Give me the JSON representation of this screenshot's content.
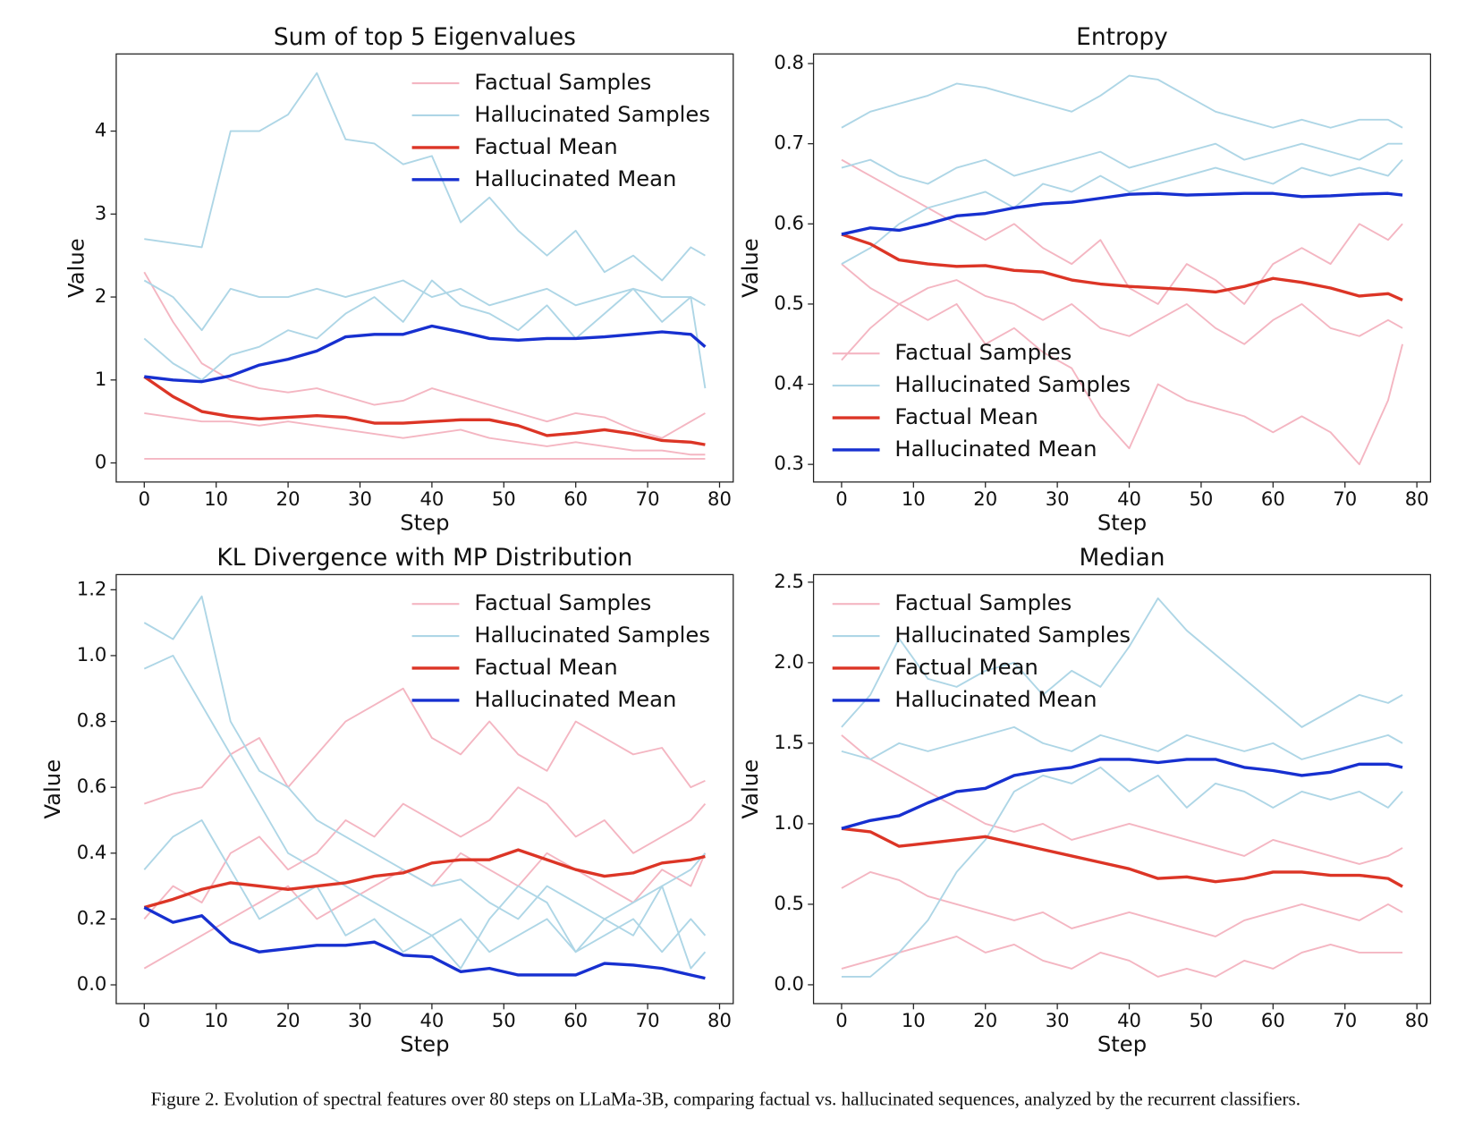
{
  "caption": "Figure 2.  Evolution of spectral features over 80 steps on LLaMa-3B, comparing factual vs. hallucinated sequences, analyzed by the recurrent classifiers.",
  "chart_data": [
    {
      "type": "line",
      "title": "Sum of top 5 Eigenvalues",
      "xlabel": "Step",
      "ylabel": "Value",
      "legend": "upper right",
      "x": [
        0,
        4,
        8,
        12,
        16,
        20,
        24,
        28,
        32,
        36,
        40,
        44,
        48,
        52,
        56,
        60,
        64,
        68,
        72,
        76,
        78
      ],
      "xlim": [
        -3.9,
        81.9
      ],
      "xticks": [
        0,
        10,
        20,
        30,
        40,
        50,
        60,
        70,
        80
      ],
      "ylim": [
        -0.23,
        4.93
      ],
      "yticks": [
        0,
        1,
        2,
        3,
        4
      ],
      "series": [
        {
          "name": "Factual Samples",
          "color": "#f4b6c2",
          "lines": [
            [
              2.3,
              1.7,
              1.2,
              1.0,
              0.9,
              0.85,
              0.9,
              0.8,
              0.7,
              0.75,
              0.9,
              0.8,
              0.7,
              0.6,
              0.5,
              0.6,
              0.55,
              0.4,
              0.3,
              0.5,
              0.6
            ],
            [
              0.6,
              0.55,
              0.5,
              0.5,
              0.45,
              0.5,
              0.45,
              0.4,
              0.35,
              0.3,
              0.35,
              0.4,
              0.3,
              0.25,
              0.2,
              0.25,
              0.2,
              0.15,
              0.15,
              0.1,
              0.1
            ],
            [
              0.05,
              0.05,
              0.05,
              0.05,
              0.05,
              0.05,
              0.05,
              0.05,
              0.05,
              0.05,
              0.05,
              0.05,
              0.05,
              0.05,
              0.05,
              0.05,
              0.05,
              0.05,
              0.05,
              0.05,
              0.05
            ]
          ]
        },
        {
          "name": "Hallucinated Samples",
          "color": "#aed6e6",
          "lines": [
            [
              2.7,
              2.65,
              2.6,
              4.0,
              4.0,
              4.2,
              4.7,
              3.9,
              3.85,
              3.6,
              3.7,
              2.9,
              3.2,
              2.8,
              2.5,
              2.8,
              2.3,
              2.5,
              2.2,
              2.6,
              2.5
            ],
            [
              2.2,
              2.0,
              1.6,
              2.1,
              2.0,
              2.0,
              2.1,
              2.0,
              2.1,
              2.2,
              2.0,
              2.1,
              1.9,
              2.0,
              2.1,
              1.9,
              2.0,
              2.1,
              2.0,
              2.0,
              1.9
            ],
            [
              1.5,
              1.2,
              1.0,
              1.3,
              1.4,
              1.6,
              1.5,
              1.8,
              2.0,
              1.7,
              2.2,
              1.9,
              1.8,
              1.6,
              1.9,
              1.5,
              1.8,
              2.1,
              1.7,
              2.0,
              0.9
            ]
          ]
        },
        {
          "name": "Factual Mean",
          "color": "#dc3526",
          "values": [
            1.04,
            0.8,
            0.62,
            0.56,
            0.53,
            0.55,
            0.57,
            0.55,
            0.48,
            0.48,
            0.5,
            0.52,
            0.52,
            0.45,
            0.33,
            0.36,
            0.4,
            0.35,
            0.27,
            0.25,
            0.22
          ]
        },
        {
          "name": "Hallucinated Mean",
          "color": "#1730d0",
          "values": [
            1.04,
            1.0,
            0.98,
            1.05,
            1.18,
            1.25,
            1.35,
            1.52,
            1.55,
            1.55,
            1.65,
            1.58,
            1.5,
            1.48,
            1.5,
            1.5,
            1.52,
            1.55,
            1.58,
            1.55,
            1.4
          ]
        }
      ]
    },
    {
      "type": "line",
      "title": "Entropy",
      "xlabel": "Step",
      "ylabel": "Value",
      "legend": "lower left",
      "x": [
        0,
        4,
        8,
        12,
        16,
        20,
        24,
        28,
        32,
        36,
        40,
        44,
        48,
        52,
        56,
        60,
        64,
        68,
        72,
        76,
        78
      ],
      "xlim": [
        -3.9,
        81.9
      ],
      "xticks": [
        0,
        10,
        20,
        30,
        40,
        50,
        60,
        70,
        80
      ],
      "ylim": [
        0.278,
        0.812
      ],
      "yticks": [
        0.3,
        0.4,
        0.5,
        0.6,
        0.7,
        0.8
      ],
      "series": [
        {
          "name": "Factual Samples",
          "color": "#f4b6c2",
          "lines": [
            [
              0.68,
              0.66,
              0.64,
              0.62,
              0.6,
              0.58,
              0.6,
              0.57,
              0.55,
              0.58,
              0.52,
              0.5,
              0.55,
              0.53,
              0.5,
              0.55,
              0.57,
              0.55,
              0.6,
              0.58,
              0.6
            ],
            [
              0.55,
              0.52,
              0.5,
              0.48,
              0.5,
              0.45,
              0.47,
              0.44,
              0.42,
              0.36,
              0.32,
              0.4,
              0.38,
              0.37,
              0.36,
              0.34,
              0.36,
              0.34,
              0.3,
              0.38,
              0.45
            ],
            [
              0.43,
              0.47,
              0.5,
              0.52,
              0.53,
              0.51,
              0.5,
              0.48,
              0.5,
              0.47,
              0.46,
              0.48,
              0.5,
              0.47,
              0.45,
              0.48,
              0.5,
              0.47,
              0.46,
              0.48,
              0.47
            ]
          ]
        },
        {
          "name": "Hallucinated Samples",
          "color": "#aed6e6",
          "lines": [
            [
              0.72,
              0.74,
              0.75,
              0.76,
              0.775,
              0.77,
              0.76,
              0.75,
              0.74,
              0.76,
              0.785,
              0.78,
              0.76,
              0.74,
              0.73,
              0.72,
              0.73,
              0.72,
              0.73,
              0.73,
              0.72
            ],
            [
              0.67,
              0.68,
              0.66,
              0.65,
              0.67,
              0.68,
              0.66,
              0.67,
              0.68,
              0.69,
              0.67,
              0.68,
              0.69,
              0.7,
              0.68,
              0.69,
              0.7,
              0.69,
              0.68,
              0.7,
              0.7
            ],
            [
              0.55,
              0.57,
              0.6,
              0.62,
              0.63,
              0.64,
              0.62,
              0.65,
              0.64,
              0.66,
              0.64,
              0.65,
              0.66,
              0.67,
              0.66,
              0.65,
              0.67,
              0.66,
              0.67,
              0.66,
              0.68
            ]
          ]
        },
        {
          "name": "Factual Mean",
          "color": "#dc3526",
          "values": [
            0.587,
            0.575,
            0.555,
            0.55,
            0.547,
            0.548,
            0.542,
            0.54,
            0.53,
            0.525,
            0.522,
            0.52,
            0.518,
            0.515,
            0.522,
            0.532,
            0.527,
            0.52,
            0.51,
            0.513,
            0.505
          ]
        },
        {
          "name": "Hallucinated Mean",
          "color": "#1730d0",
          "values": [
            0.587,
            0.595,
            0.592,
            0.6,
            0.61,
            0.613,
            0.62,
            0.625,
            0.627,
            0.632,
            0.637,
            0.638,
            0.636,
            0.637,
            0.638,
            0.638,
            0.634,
            0.635,
            0.637,
            0.638,
            0.636
          ]
        }
      ]
    },
    {
      "type": "line",
      "title": "KL Divergence with MP Distribution",
      "xlabel": "Step",
      "ylabel": "Value",
      "legend": "upper right",
      "x": [
        0,
        4,
        8,
        12,
        16,
        20,
        24,
        28,
        32,
        36,
        40,
        44,
        48,
        52,
        56,
        60,
        64,
        68,
        72,
        76,
        78
      ],
      "xlim": [
        -3.9,
        81.9
      ],
      "xticks": [
        0,
        10,
        20,
        30,
        40,
        50,
        60,
        70,
        80
      ],
      "ylim": [
        -0.057,
        1.246
      ],
      "yticks": [
        {
          "value": 0,
          "label": "0.0"
        },
        0.2,
        0.4,
        0.6,
        0.8,
        {
          "value": 1,
          "label": "1.0"
        },
        1.2
      ],
      "series": [
        {
          "name": "Factual Samples",
          "color": "#f4b6c2",
          "lines": [
            [
              0.55,
              0.58,
              0.6,
              0.7,
              0.75,
              0.6,
              0.7,
              0.8,
              0.85,
              0.9,
              0.75,
              0.7,
              0.8,
              0.7,
              0.65,
              0.8,
              0.75,
              0.7,
              0.72,
              0.6,
              0.62
            ],
            [
              0.2,
              0.3,
              0.25,
              0.4,
              0.45,
              0.35,
              0.4,
              0.5,
              0.45,
              0.55,
              0.5,
              0.45,
              0.5,
              0.6,
              0.55,
              0.45,
              0.5,
              0.4,
              0.45,
              0.5,
              0.55
            ],
            [
              0.05,
              0.1,
              0.15,
              0.2,
              0.25,
              0.3,
              0.2,
              0.25,
              0.3,
              0.35,
              0.3,
              0.4,
              0.35,
              0.3,
              0.4,
              0.35,
              0.3,
              0.25,
              0.35,
              0.3,
              0.4
            ]
          ]
        },
        {
          "name": "Hallucinated Samples",
          "color": "#aed6e6",
          "lines": [
            [
              1.1,
              1.05,
              1.18,
              0.8,
              0.65,
              0.6,
              0.5,
              0.45,
              0.4,
              0.35,
              0.3,
              0.32,
              0.25,
              0.2,
              0.3,
              0.25,
              0.2,
              0.25,
              0.3,
              0.35,
              0.4
            ],
            [
              0.96,
              1.0,
              0.85,
              0.7,
              0.55,
              0.4,
              0.35,
              0.3,
              0.25,
              0.2,
              0.15,
              0.2,
              0.1,
              0.15,
              0.2,
              0.1,
              0.15,
              0.2,
              0.1,
              0.2,
              0.15
            ],
            [
              0.35,
              0.45,
              0.5,
              0.35,
              0.2,
              0.25,
              0.3,
              0.15,
              0.2,
              0.1,
              0.15,
              0.05,
              0.2,
              0.3,
              0.25,
              0.1,
              0.2,
              0.15,
              0.3,
              0.05,
              0.1
            ]
          ]
        },
        {
          "name": "Factual Mean",
          "color": "#dc3526",
          "values": [
            0.235,
            0.26,
            0.29,
            0.31,
            0.3,
            0.29,
            0.3,
            0.31,
            0.33,
            0.34,
            0.37,
            0.38,
            0.38,
            0.41,
            0.38,
            0.35,
            0.33,
            0.34,
            0.37,
            0.38,
            0.39
          ]
        },
        {
          "name": "Hallucinated Mean",
          "color": "#1730d0",
          "values": [
            0.235,
            0.19,
            0.21,
            0.13,
            0.1,
            0.11,
            0.12,
            0.12,
            0.13,
            0.09,
            0.085,
            0.04,
            0.05,
            0.03,
            0.03,
            0.03,
            0.065,
            0.06,
            0.05,
            0.03,
            0.02
          ]
        }
      ]
    },
    {
      "type": "line",
      "title": "Median",
      "xlabel": "Step",
      "ylabel": "Value",
      "legend": "upper left",
      "x": [
        0,
        4,
        8,
        12,
        16,
        20,
        24,
        28,
        32,
        36,
        40,
        44,
        48,
        52,
        56,
        60,
        64,
        68,
        72,
        76,
        78
      ],
      "xlim": [
        -3.9,
        81.9
      ],
      "xticks": [
        0,
        10,
        20,
        30,
        40,
        50,
        60,
        70,
        80
      ],
      "ylim": [
        -0.117,
        2.547
      ],
      "yticks": [
        {
          "value": 0,
          "label": "0.0"
        },
        0.5,
        {
          "value": 1,
          "label": "1.0"
        },
        1.5,
        {
          "value": 2,
          "label": "2.0"
        },
        2.5
      ],
      "series": [
        {
          "name": "Factual Samples",
          "color": "#f4b6c2",
          "lines": [
            [
              1.55,
              1.4,
              1.3,
              1.2,
              1.1,
              1.0,
              0.95,
              1.0,
              0.9,
              0.95,
              1.0,
              0.95,
              0.9,
              0.85,
              0.8,
              0.9,
              0.85,
              0.8,
              0.75,
              0.8,
              0.85
            ],
            [
              0.6,
              0.7,
              0.65,
              0.55,
              0.5,
              0.45,
              0.4,
              0.45,
              0.35,
              0.4,
              0.45,
              0.4,
              0.35,
              0.3,
              0.4,
              0.45,
              0.5,
              0.45,
              0.4,
              0.5,
              0.45
            ],
            [
              0.1,
              0.15,
              0.2,
              0.25,
              0.3,
              0.2,
              0.25,
              0.15,
              0.1,
              0.2,
              0.15,
              0.05,
              0.1,
              0.05,
              0.15,
              0.1,
              0.2,
              0.25,
              0.2,
              0.2,
              0.2
            ]
          ]
        },
        {
          "name": "Hallucinated Samples",
          "color": "#aed6e6",
          "lines": [
            [
              1.6,
              1.8,
              2.15,
              1.9,
              1.85,
              1.95,
              2.0,
              1.8,
              1.95,
              1.85,
              2.1,
              2.4,
              2.2,
              2.05,
              1.9,
              1.75,
              1.6,
              1.7,
              1.8,
              1.75,
              1.8
            ],
            [
              1.45,
              1.4,
              1.5,
              1.45,
              1.5,
              1.55,
              1.6,
              1.5,
              1.45,
              1.55,
              1.5,
              1.45,
              1.55,
              1.5,
              1.45,
              1.5,
              1.4,
              1.45,
              1.5,
              1.55,
              1.5
            ],
            [
              0.05,
              0.05,
              0.2,
              0.4,
              0.7,
              0.9,
              1.2,
              1.3,
              1.25,
              1.35,
              1.2,
              1.3,
              1.1,
              1.25,
              1.2,
              1.1,
              1.2,
              1.15,
              1.2,
              1.1,
              1.2
            ]
          ]
        },
        {
          "name": "Factual Mean",
          "color": "#dc3526",
          "values": [
            0.97,
            0.95,
            0.86,
            0.88,
            0.9,
            0.92,
            0.88,
            0.84,
            0.8,
            0.76,
            0.72,
            0.66,
            0.67,
            0.64,
            0.66,
            0.7,
            0.7,
            0.68,
            0.68,
            0.66,
            0.61
          ]
        },
        {
          "name": "Hallucinated Mean",
          "color": "#1730d0",
          "values": [
            0.97,
            1.02,
            1.05,
            1.13,
            1.2,
            1.22,
            1.3,
            1.33,
            1.35,
            1.4,
            1.4,
            1.38,
            1.4,
            1.4,
            1.35,
            1.33,
            1.3,
            1.32,
            1.37,
            1.37,
            1.35
          ]
        }
      ]
    }
  ]
}
